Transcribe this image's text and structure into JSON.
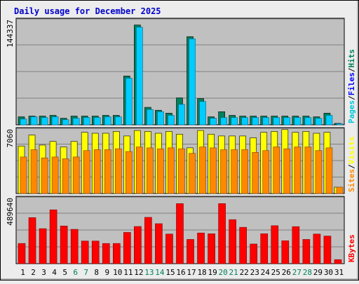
{
  "chart_data": {
    "type": "bar",
    "title": "Daily usage for December 2025",
    "categories": [
      "1",
      "2",
      "3",
      "4",
      "5",
      "6",
      "7",
      "8",
      "9",
      "10",
      "11",
      "12",
      "13",
      "14",
      "15",
      "16",
      "17",
      "18",
      "19",
      "20",
      "21",
      "22",
      "23",
      "24",
      "25",
      "26",
      "27",
      "28",
      "29",
      "30",
      "31"
    ],
    "weekend_days": [
      "6",
      "7",
      "13",
      "14",
      "20",
      "21",
      "27",
      "28"
    ],
    "colors": {
      "title": "#0000cc",
      "hits": "#00805c",
      "files": "#00ccff",
      "pages": "#00c8d8",
      "visits": "#ffff00",
      "sites": "#ff8800",
      "kbytes": "#ff0000",
      "weekday_label": "#000000",
      "weekend_label": "#00805c",
      "panel_bg": "#c0c0c0",
      "gridline": "#808080"
    },
    "panels": [
      {
        "id": "hits-files-pages",
        "max_label": "144337",
        "ylim": [
          0,
          144337
        ],
        "right_label": [
          "Pages",
          "/",
          "Files",
          "/",
          "Hits"
        ],
        "right_label_colors": [
          "#00c8d8",
          "#000000",
          "#0000ff",
          "#000000",
          "#00805c"
        ],
        "series": [
          {
            "name": "Hits",
            "values": [
              11000,
              12000,
              12000,
              13000,
              9000,
              12000,
              12000,
              12000,
              13000,
              13000,
              67000,
              137000,
              24000,
              20000,
              16000,
              37000,
              121000,
              36000,
              11000,
              18000,
              13000,
              12000,
              12000,
              12000,
              12000,
              12000,
              12000,
              12000,
              11000,
              16000,
              2000
            ]
          },
          {
            "name": "Files",
            "values": [
              8000,
              11000,
              10000,
              11000,
              7000,
              9000,
              10000,
              10000,
              11000,
              11000,
              64000,
              134000,
              21000,
              18000,
              13000,
              28000,
              118000,
              32000,
              9000,
              10000,
              10000,
              10000,
              10000,
              10000,
              10000,
              10000,
              10000,
              10000,
              9000,
              13000,
              1500
            ]
          }
        ]
      },
      {
        "id": "visits-sites",
        "max_label": "7060",
        "ylim": [
          0,
          7060
        ],
        "right_label": [
          "Sites",
          "/",
          "Visits"
        ],
        "right_label_colors": [
          "#ff8800",
          "#000000",
          "#ffff00"
        ],
        "series": [
          {
            "name": "Visits",
            "values": [
              5200,
              6400,
              5300,
              5700,
              5100,
              5700,
              6700,
              6600,
              6600,
              6800,
              6300,
              6900,
              6800,
              6600,
              6800,
              6500,
              5000,
              6900,
              6500,
              6300,
              6300,
              6300,
              6100,
              6700,
              6800,
              7000,
              6700,
              6800,
              6600,
              6700,
              700
            ]
          },
          {
            "name": "Sites",
            "values": [
              4000,
              4800,
              3900,
              4000,
              3800,
              4000,
              4700,
              4800,
              4800,
              4900,
              4600,
              5100,
              5000,
              4900,
              5000,
              4900,
              4400,
              5100,
              5000,
              4800,
              4800,
              4800,
              4500,
              4700,
              5100,
              4900,
              5100,
              5100,
              4700,
              5000,
              700
            ]
          }
        ]
      },
      {
        "id": "kbytes",
        "max_label": "489640",
        "ylim": [
          0,
          489640
        ],
        "right_label": [
          "KBytes"
        ],
        "right_label_colors": [
          "#ff0000"
        ],
        "series": [
          {
            "name": "KBytes",
            "values": [
              150000,
              342000,
              260000,
              400000,
              280000,
              255000,
              168000,
              168000,
              150000,
              150000,
              232000,
              276000,
              344000,
              297000,
              220000,
              446000,
              180000,
              228000,
              222000,
              446000,
              327000,
              270000,
              146000,
              222000,
              282000,
              170000,
              275000,
              180000,
              220000,
              205000,
              30000
            ]
          }
        ]
      }
    ]
  }
}
